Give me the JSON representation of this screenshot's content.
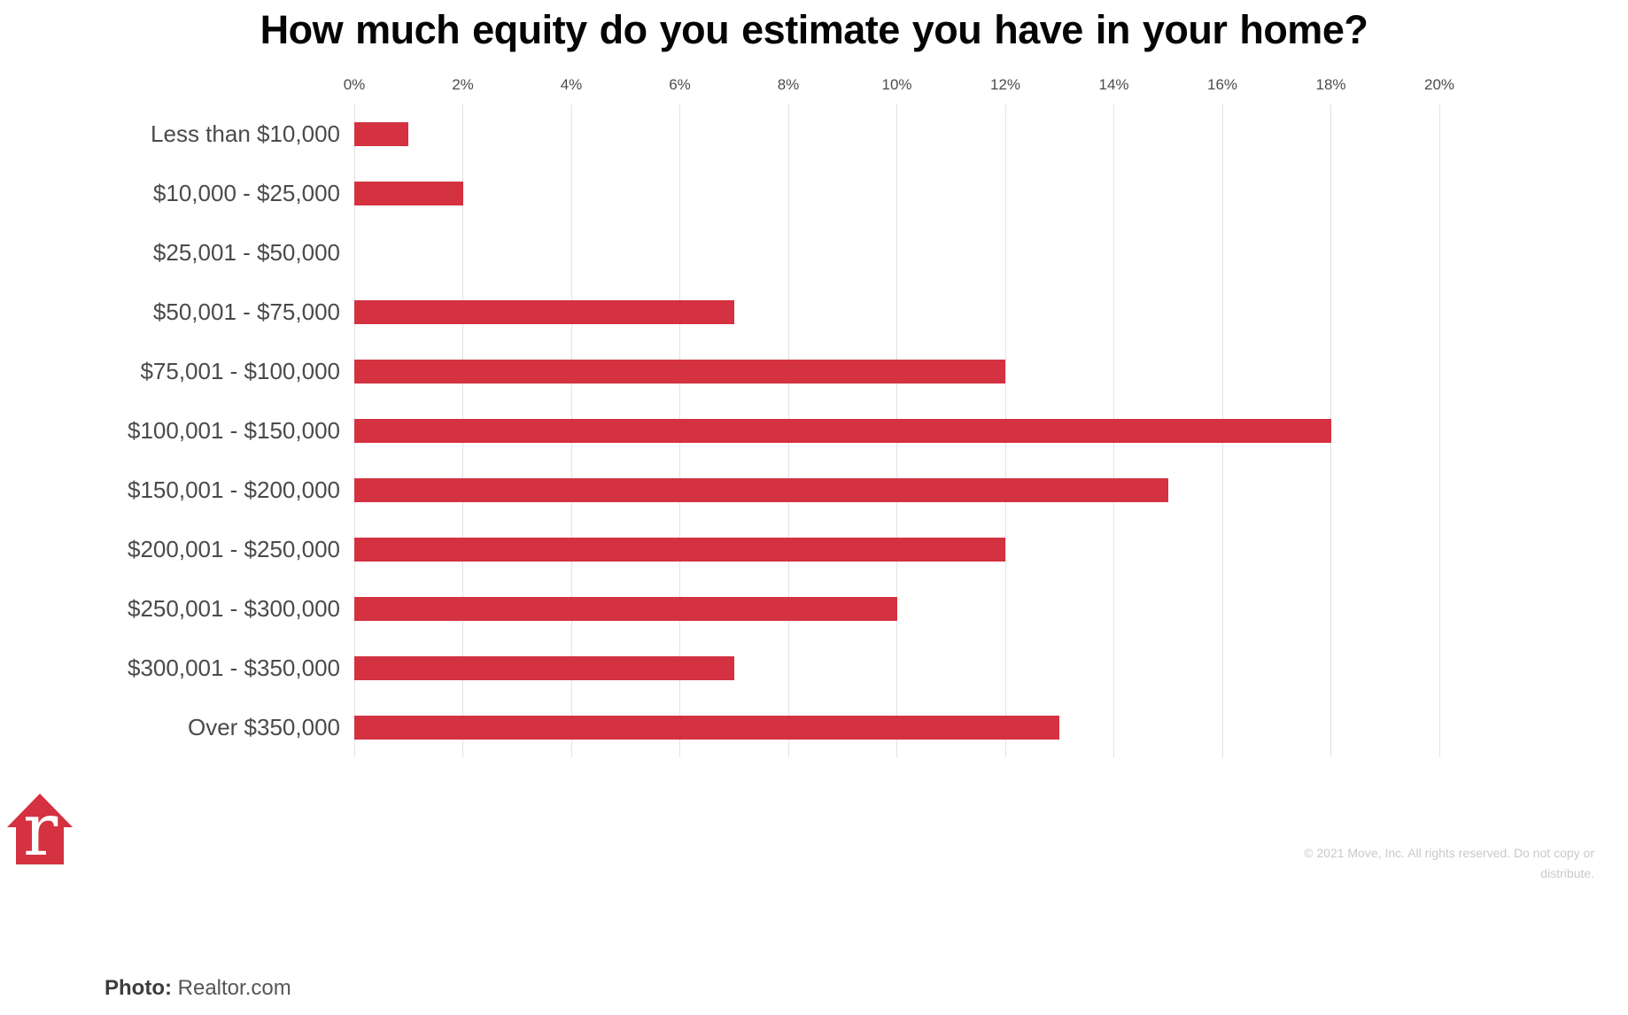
{
  "title": "How much equity do you estimate you have in your home?",
  "chart_data": {
    "type": "bar",
    "orientation": "horizontal",
    "title": "How much equity do you estimate you have in your home?",
    "categories": [
      "Less than $10,000",
      "$10,000 - $25,000",
      "$25,001 - $50,000",
      "$50,001 - $75,000",
      "$75,001 - $100,000",
      "$100,001 - $150,000",
      "$150,001 - $200,000",
      "$200,001 - $250,000",
      "$250,001 - $300,000",
      "$300,001 - $350,000",
      "Over $350,000"
    ],
    "values": [
      1,
      2,
      0,
      7,
      12,
      18,
      15,
      12,
      10,
      7,
      13
    ],
    "unit": "%",
    "xlabel": "",
    "ylabel": "",
    "xlim": [
      0,
      20
    ],
    "x_ticks": [
      "0%",
      "2%",
      "4%",
      "6%",
      "8%",
      "10%",
      "12%",
      "14%",
      "16%",
      "18%",
      "20%"
    ],
    "grid": true,
    "legend_position": "none",
    "bar_color": "#d43141",
    "gridline_color": "#e2e2e2"
  },
  "logo": {
    "name": "realtor-com-logo",
    "letter": "r",
    "house_color": "#d43141",
    "letter_color": "#ffffff"
  },
  "footer": {
    "copyright": "© 2021 Move, Inc. All rights reserved. Do not copy or distribute.",
    "caption_label": "Photo:",
    "caption_value": " Realtor.com"
  }
}
